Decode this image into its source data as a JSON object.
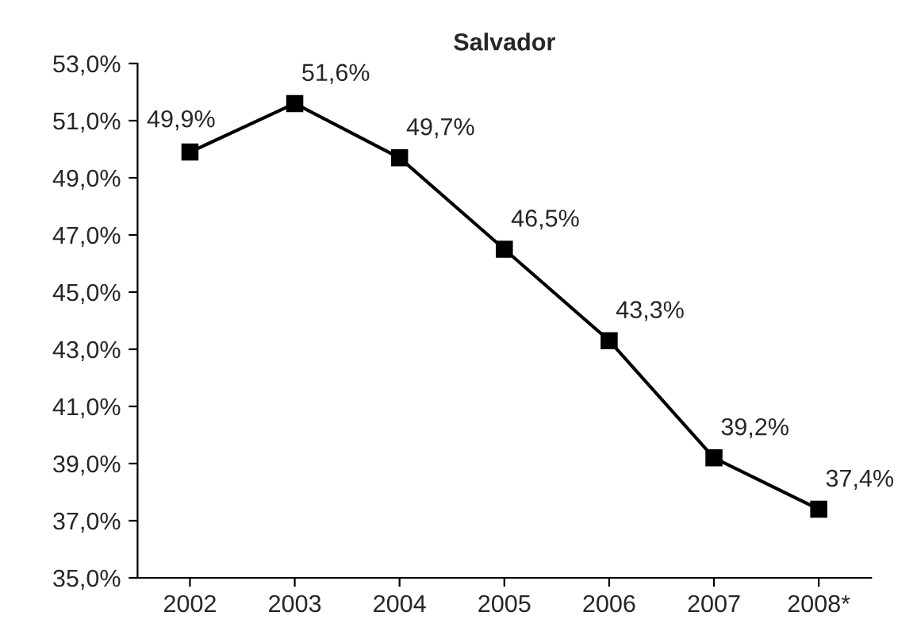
{
  "chart_data": {
    "type": "line",
    "title": "Salvador",
    "categories": [
      "2002",
      "2003",
      "2004",
      "2005",
      "2006",
      "2007",
      "2008*"
    ],
    "series": [
      {
        "color": "#000000",
        "values": [
          49.9,
          51.6,
          49.7,
          46.5,
          43.3,
          39.2,
          37.4
        ],
        "value_labels": [
          "49,9%",
          "51,6%",
          "49,7%",
          "46,5%",
          "43,3%",
          "39,2%",
          "37,4%"
        ]
      }
    ],
    "ylim": [
      35,
      53
    ],
    "yticks": [
      {
        "value": 35,
        "label": "35,0%"
      },
      {
        "value": 37,
        "label": "37,0%"
      },
      {
        "value": 39,
        "label": "39,0%"
      },
      {
        "value": 41,
        "label": "41,0%"
      },
      {
        "value": 43,
        "label": "43,0%"
      },
      {
        "value": 45,
        "label": "45,0%"
      },
      {
        "value": 47,
        "label": "47,0%"
      },
      {
        "value": 49,
        "label": "49,0%"
      },
      {
        "value": 51,
        "label": "51,0%"
      },
      {
        "value": 53,
        "label": "53,0%"
      }
    ],
    "grid": false,
    "legend": false,
    "marker": "square",
    "line_style": "solid"
  }
}
